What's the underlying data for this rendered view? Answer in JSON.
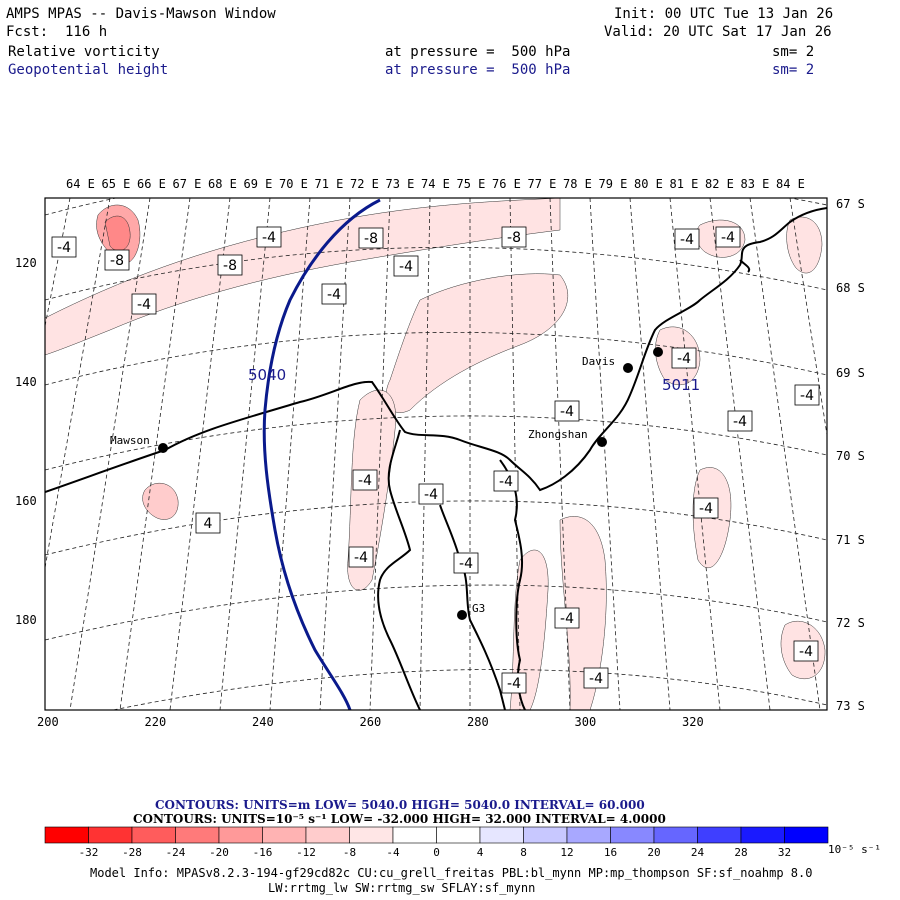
{
  "header": {
    "title": "AMPS MPAS -- Davis-Mawson Window",
    "fcst": "Fcst:  116 h",
    "init": "Init: 00 UTC Tue 13 Jan 26",
    "valid": "Valid: 20 UTC Sat 17 Jan 26",
    "field1": {
      "name": "Relative vorticity",
      "level": "at pressure =  500 hPa",
      "sm": "sm= 2"
    },
    "field2": {
      "name": "Geopotential height",
      "level": "at pressure =  500 hPa",
      "sm": "sm= 2"
    }
  },
  "axes": {
    "top_lon": [
      "64 E",
      "65 E",
      "66 E",
      "67 E",
      "68 E",
      "69 E",
      "70 E",
      "71 E",
      "72 E",
      "73 E",
      "74 E",
      "75 E",
      "76 E",
      "77 E",
      "78 E",
      "79 E",
      "80 E",
      "81 E",
      "82 E",
      "83 E",
      "84 E"
    ],
    "right_lat": [
      "67 S",
      "68 S",
      "69 S",
      "70 S",
      "71 S",
      "72 S",
      "73 S"
    ],
    "left_y": [
      "120",
      "140",
      "160",
      "180"
    ],
    "bottom_x": [
      "200",
      "220",
      "240",
      "260",
      "280",
      "300",
      "320"
    ]
  },
  "stations": [
    {
      "name": "Davis"
    },
    {
      "name": "Mawson"
    },
    {
      "name": "Zhongshan"
    },
    {
      "name": "G3"
    },
    {
      "name": ""
    }
  ],
  "contour_labels": [
    "-4",
    "-8",
    "-8",
    "-4",
    "-4",
    "-8",
    "-4",
    "-4",
    "-8",
    "-4",
    "-4",
    "-4",
    "-4",
    "-4",
    "-4",
    "-4",
    "-4",
    "-4",
    "-4",
    "-4",
    "-4",
    "-4",
    "4",
    "-4",
    "-4",
    "-4"
  ],
  "height_labels": [
    "5040",
    "5011"
  ],
  "legend": {
    "line1": "CONTOURS:  UNITS=m  LOW=  5040.0         HIGH=  5040.0          INTERVAL=   60.000",
    "line2": "CONTOURS:  UNITS=10⁻⁵ s⁻¹  LOW=  -32.000        HIGH=  32.000         INTERVAL=   4.0000",
    "ticks": [
      "-32",
      "-28",
      "-24",
      "-20",
      "-16",
      "-12",
      "-8",
      "-4",
      "0",
      "4",
      "8",
      "12",
      "16",
      "20",
      "24",
      "28",
      "32"
    ],
    "unit": "10⁻⁵ s⁻¹",
    "colors": [
      "#ff0000",
      "#ff3333",
      "#ff5c5c",
      "#ff7a7a",
      "#ff9999",
      "#ffb3b3",
      "#ffcccc",
      "#ffe6e6",
      "#ffffff",
      "#ffffff",
      "#e6e6ff",
      "#c8c8ff",
      "#a8a8ff",
      "#8888ff",
      "#6666ff",
      "#3f3fff",
      "#1a1aff",
      "#0000ff"
    ]
  },
  "model_info": {
    "line1": "Model Info: MPASv8.2.3-194-gf29cd82c CU:cu_grell_freitas PBL:bl_mynn MP:mp_thompson SF:sf_noahmp 8.0",
    "line2": "LW:rrtmg_lw SW:rrtmg_sw SFLAY:sf_mynn"
  }
}
